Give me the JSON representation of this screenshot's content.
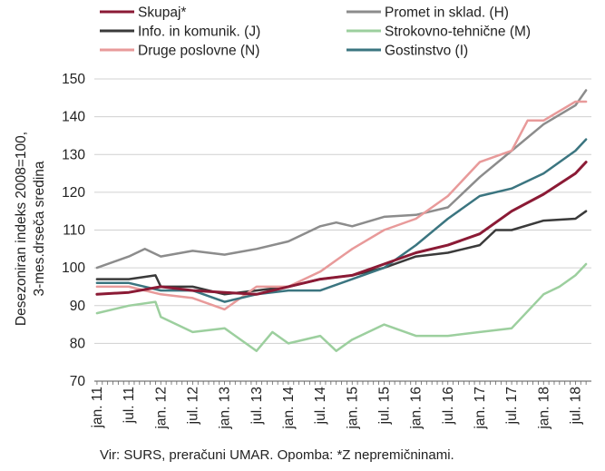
{
  "chart_data": {
    "type": "line",
    "ylabel": "Desezoniran indeks 2008=100, 3-mes.drseča sredina",
    "ylabel_lines": [
      "Desezoniran indeks 2008=100,",
      "3-mes.drseča sredina"
    ],
    "ylim": [
      70,
      150
    ],
    "yticks": [
      70,
      80,
      90,
      100,
      110,
      120,
      130,
      140,
      150
    ],
    "grid": true,
    "legend_position": "top",
    "xtick_labels": [
      "jan. 11",
      "jul. 11",
      "jan. 12",
      "jul. 12",
      "jan. 13",
      "jul. 13",
      "jan. 14",
      "jul. 14",
      "jan. 15",
      "jul. 15",
      "jan. 16",
      "jul. 16",
      "jan. 17",
      "jul. 17",
      "jan. 18",
      "jul. 18"
    ],
    "x_start": "2011-01",
    "x_end": "2018-09",
    "series": [
      {
        "name": "Skupaj*",
        "color": "#8b1a35",
        "width": 3,
        "points": [
          [
            "2011-01",
            93
          ],
          [
            "2011-07",
            93.5
          ],
          [
            "2012-01",
            95
          ],
          [
            "2012-07",
            94
          ],
          [
            "2013-01",
            93.5
          ],
          [
            "2013-07",
            93
          ],
          [
            "2014-01",
            95
          ],
          [
            "2014-07",
            97
          ],
          [
            "2015-01",
            98
          ],
          [
            "2015-07",
            101
          ],
          [
            "2016-01",
            104
          ],
          [
            "2016-07",
            106
          ],
          [
            "2017-01",
            109
          ],
          [
            "2017-07",
            115
          ],
          [
            "2018-01",
            119.5
          ],
          [
            "2018-07",
            125
          ],
          [
            "2018-09",
            128
          ]
        ]
      },
      {
        "name": "Promet in sklad. (H)",
        "color": "#8c8c8c",
        "width": 2.5,
        "points": [
          [
            "2011-01",
            100
          ],
          [
            "2011-07",
            103
          ],
          [
            "2011-10",
            105
          ],
          [
            "2012-01",
            103
          ],
          [
            "2012-07",
            104.5
          ],
          [
            "2013-01",
            103.5
          ],
          [
            "2013-07",
            105
          ],
          [
            "2014-01",
            107
          ],
          [
            "2014-07",
            111
          ],
          [
            "2014-10",
            112
          ],
          [
            "2015-01",
            111
          ],
          [
            "2015-07",
            113.5
          ],
          [
            "2016-01",
            114
          ],
          [
            "2016-07",
            116
          ],
          [
            "2017-01",
            124
          ],
          [
            "2017-07",
            131
          ],
          [
            "2018-01",
            138
          ],
          [
            "2018-07",
            143
          ],
          [
            "2018-09",
            147
          ]
        ]
      },
      {
        "name": "Info. in komunik. (J)",
        "color": "#3a3a3a",
        "width": 2.5,
        "points": [
          [
            "2011-01",
            97
          ],
          [
            "2011-07",
            97
          ],
          [
            "2011-12",
            98
          ],
          [
            "2012-01",
            95
          ],
          [
            "2012-07",
            95
          ],
          [
            "2013-01",
            93
          ],
          [
            "2013-07",
            94
          ],
          [
            "2014-01",
            95
          ],
          [
            "2014-07",
            97
          ],
          [
            "2015-01",
            98
          ],
          [
            "2015-07",
            100
          ],
          [
            "2016-01",
            103
          ],
          [
            "2016-07",
            104
          ],
          [
            "2017-01",
            106
          ],
          [
            "2017-04",
            110
          ],
          [
            "2017-07",
            110
          ],
          [
            "2018-01",
            112.5
          ],
          [
            "2018-07",
            113
          ],
          [
            "2018-09",
            115
          ]
        ]
      },
      {
        "name": "Strokovno-tehnične (M)",
        "color": "#9ccf9e",
        "width": 2.5,
        "points": [
          [
            "2011-01",
            88
          ],
          [
            "2011-07",
            90
          ],
          [
            "2011-12",
            91
          ],
          [
            "2012-01",
            87
          ],
          [
            "2012-07",
            83
          ],
          [
            "2013-01",
            84
          ],
          [
            "2013-07",
            78
          ],
          [
            "2013-10",
            83
          ],
          [
            "2014-01",
            80
          ],
          [
            "2014-07",
            82
          ],
          [
            "2014-10",
            78
          ],
          [
            "2015-01",
            81
          ],
          [
            "2015-07",
            85
          ],
          [
            "2016-01",
            82
          ],
          [
            "2016-07",
            82
          ],
          [
            "2017-01",
            83
          ],
          [
            "2017-07",
            84
          ],
          [
            "2018-01",
            93
          ],
          [
            "2018-04",
            95
          ],
          [
            "2018-07",
            98
          ],
          [
            "2018-09",
            101
          ]
        ]
      },
      {
        "name": "Druge poslovne (N)",
        "color": "#e89a9a",
        "width": 2.5,
        "points": [
          [
            "2011-01",
            95
          ],
          [
            "2011-07",
            95
          ],
          [
            "2012-01",
            93
          ],
          [
            "2012-07",
            92
          ],
          [
            "2013-01",
            89
          ],
          [
            "2013-07",
            95
          ],
          [
            "2014-01",
            95
          ],
          [
            "2014-07",
            99
          ],
          [
            "2015-01",
            105
          ],
          [
            "2015-07",
            110
          ],
          [
            "2016-01",
            113
          ],
          [
            "2016-07",
            119
          ],
          [
            "2017-01",
            128
          ],
          [
            "2017-07",
            131
          ],
          [
            "2017-10",
            139
          ],
          [
            "2018-01",
            139
          ],
          [
            "2018-07",
            144
          ],
          [
            "2018-09",
            144
          ]
        ]
      },
      {
        "name": "Gostinstvo (I)",
        "color": "#3b7580",
        "width": 2.5,
        "points": [
          [
            "2011-01",
            96
          ],
          [
            "2011-07",
            96
          ],
          [
            "2012-01",
            94
          ],
          [
            "2012-07",
            94
          ],
          [
            "2013-01",
            91
          ],
          [
            "2013-07",
            93
          ],
          [
            "2014-01",
            94
          ],
          [
            "2014-07",
            94
          ],
          [
            "2015-01",
            97
          ],
          [
            "2015-07",
            100
          ],
          [
            "2016-01",
            106
          ],
          [
            "2016-07",
            113
          ],
          [
            "2017-01",
            119
          ],
          [
            "2017-07",
            121
          ],
          [
            "2018-01",
            125
          ],
          [
            "2018-07",
            131
          ],
          [
            "2018-09",
            134
          ]
        ]
      }
    ]
  },
  "source_note": "Vir: SURS, preračuni UMAR. Opomba: *Z nepremičninami."
}
